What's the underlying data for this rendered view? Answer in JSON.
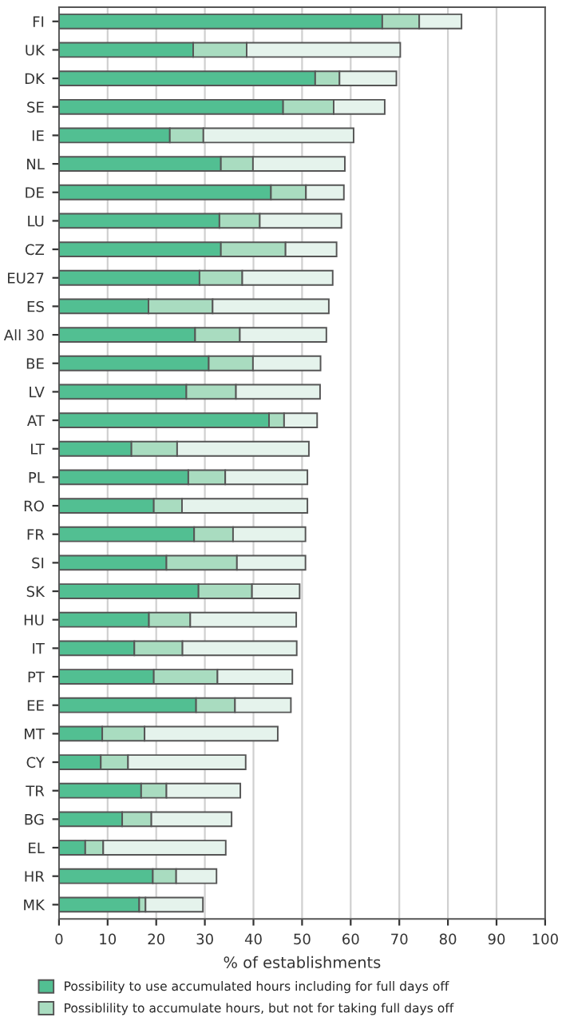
{
  "chart_data": {
    "type": "bar",
    "orientation": "horizontal",
    "stacked": true,
    "xlabel": "% of establishments",
    "categories": [
      "FI",
      "UK",
      "DK",
      "SE",
      "IE",
      "NL",
      "DE",
      "LU",
      "CZ",
      "EU27",
      "ES",
      "All 30",
      "BE",
      "LV",
      "AT",
      "LT",
      "PL",
      "RO",
      "FR",
      "SI",
      "SK",
      "HU",
      "IT",
      "PT",
      "EE",
      "MT",
      "CY",
      "TR",
      "BG",
      "EL",
      "HR",
      "MK"
    ],
    "series": [
      {
        "name": "Possibility to use accumulated hours including for full days off",
        "color": "#52bf92",
        "values": [
          66.5,
          27.6,
          52.7,
          46.1,
          22.8,
          33.3,
          43.6,
          33.0,
          33.3,
          28.9,
          18.4,
          28.0,
          30.8,
          26.2,
          43.2,
          14.9,
          26.6,
          19.5,
          27.8,
          22.1,
          28.7,
          18.5,
          15.5,
          19.5,
          28.2,
          8.9,
          8.6,
          16.9,
          13.0,
          5.4,
          19.3,
          16.5
        ]
      },
      {
        "name": "Possiblility to accumulate hours, but not for taking full days off",
        "color": "#a9dcc0",
        "values": [
          7.6,
          11.0,
          5.0,
          10.4,
          6.9,
          6.6,
          7.2,
          8.3,
          13.3,
          8.8,
          13.2,
          9.2,
          9.1,
          10.2,
          3.1,
          9.4,
          7.6,
          5.8,
          8.0,
          14.5,
          11.0,
          8.5,
          9.9,
          13.1,
          8.0,
          8.7,
          5.6,
          5.2,
          6.0,
          3.7,
          4.8,
          1.3
        ]
      },
      {
        "color": "#e5f3ec",
        "values": [
          8.7,
          31.6,
          11.7,
          10.5,
          30.9,
          18.9,
          7.8,
          16.8,
          10.5,
          18.6,
          23.9,
          17.8,
          13.9,
          17.3,
          6.8,
          27.1,
          16.9,
          25.8,
          14.9,
          14.1,
          9.8,
          21.8,
          23.5,
          15.4,
          11.5,
          27.4,
          24.2,
          15.2,
          16.5,
          25.2,
          8.3,
          11.8
        ]
      }
    ],
    "xlim": [
      0,
      100
    ],
    "xticks": [
      0,
      10,
      20,
      30,
      40,
      50,
      60,
      70,
      80,
      90,
      100
    ],
    "grid": "x",
    "legend": "bottom"
  }
}
